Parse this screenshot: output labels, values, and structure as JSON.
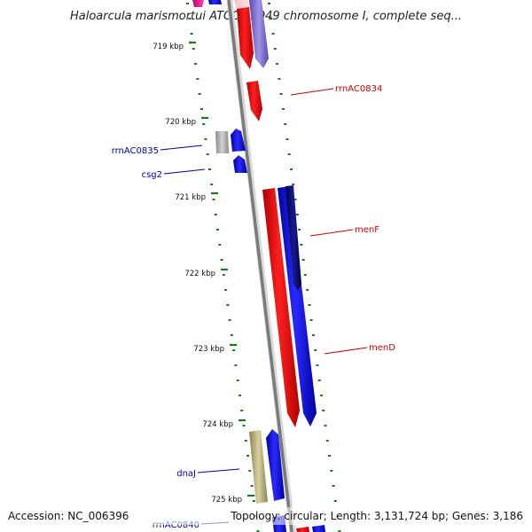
{
  "title": "Haloarcula marismortui ATCC 43049 chromosome I, complete seq...",
  "footer": {
    "accession": "Accession: NC_006396",
    "summary": "Topology: circular; Length: 3,131,724 bp; Genes: 3,186"
  },
  "ruler": {
    "ticks": [
      "719 kbp",
      "720 kbp",
      "721 kbp",
      "722 kbp",
      "723 kbp",
      "724 kbp",
      "725 kbp"
    ]
  },
  "gene_labels": [
    {
      "text": "rrnAC0834",
      "strand": "forward"
    },
    {
      "text": "rrnAC0835",
      "strand": "reverse"
    },
    {
      "text": "csg2",
      "strand": "reverse"
    },
    {
      "text": "menF",
      "strand": "forward"
    },
    {
      "text": "menD",
      "strand": "forward"
    },
    {
      "text": "dnaJ",
      "strand": "reverse"
    },
    {
      "text": "rrnAC0840",
      "strand": "reverse"
    }
  ],
  "colors": {
    "forward_label": "#cc0000",
    "reverse_label": "#0000aa",
    "forward_gene": "#ff0000",
    "reverse_gene": "#0000ff",
    "backbone": "#888888",
    "tick": "#1a7a1a"
  }
}
